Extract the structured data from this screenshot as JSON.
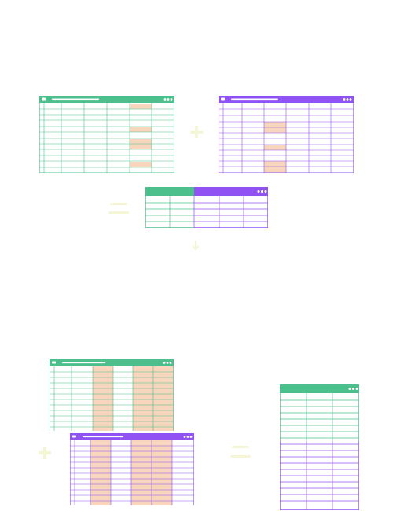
{
  "colors": {
    "green": "#4cc08c",
    "purple": "#9152f4",
    "highlight": "#f8d5bd",
    "faint": "#f4f6d6",
    "background": "#ffffff"
  },
  "icons": {
    "window_dots": "three-dots-icon",
    "window_pill": "window-tab-icon",
    "plus_sign": "plus-icon",
    "down_arrow": "arrow-down-icon"
  }
}
